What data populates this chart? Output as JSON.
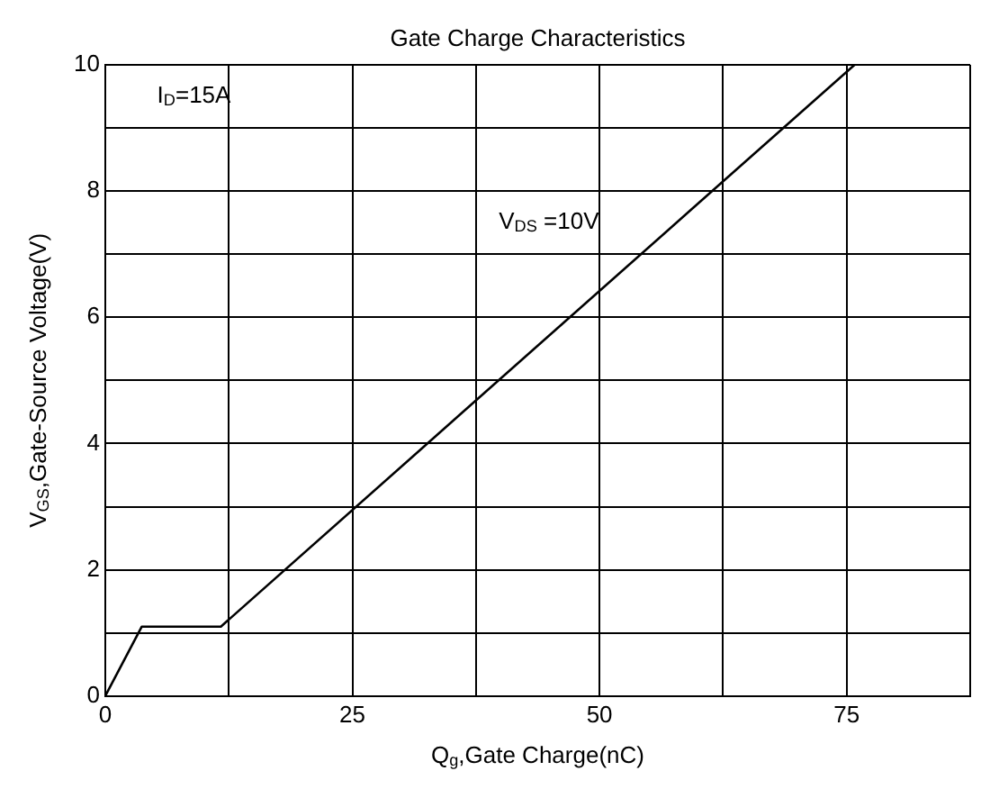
{
  "chart_data": {
    "type": "line",
    "title": "Gate Charge Characteristics",
    "xlabel": "Q$_{g}$,Gate Charge(nC)",
    "ylabel": "V$_{GS}$,Gate-Source Voltage(V)",
    "annotations": [
      "I$_{D}$=15A",
      "V$_{DS}$ =10V"
    ],
    "series": [
      {
        "color": "#000000",
        "x": [
          0,
          3.7,
          11.7,
          75.8
        ],
        "values": [
          0,
          1.1,
          1.1,
          10
        ]
      }
    ],
    "xlim": [
      0,
      87.5
    ],
    "xticks": [
      0,
      {
        "value": 12.5,
        "label": null
      },
      25,
      {
        "value": 37.5,
        "label": null
      },
      50,
      {
        "value": 62.5,
        "label": null
      },
      75,
      {
        "value": 87.5,
        "label": null
      }
    ],
    "ylim": [
      0,
      10
    ],
    "yticks": [
      0,
      {
        "value": 1,
        "label": null
      },
      2,
      {
        "value": 3,
        "label": null
      },
      4,
      {
        "value": 5,
        "label": null
      },
      6,
      {
        "value": 7,
        "label": null
      },
      8,
      {
        "value": 9,
        "label": null
      },
      10
    ],
    "grid": true,
    "legend": false,
    "marker": "none",
    "line_style": "solid"
  }
}
